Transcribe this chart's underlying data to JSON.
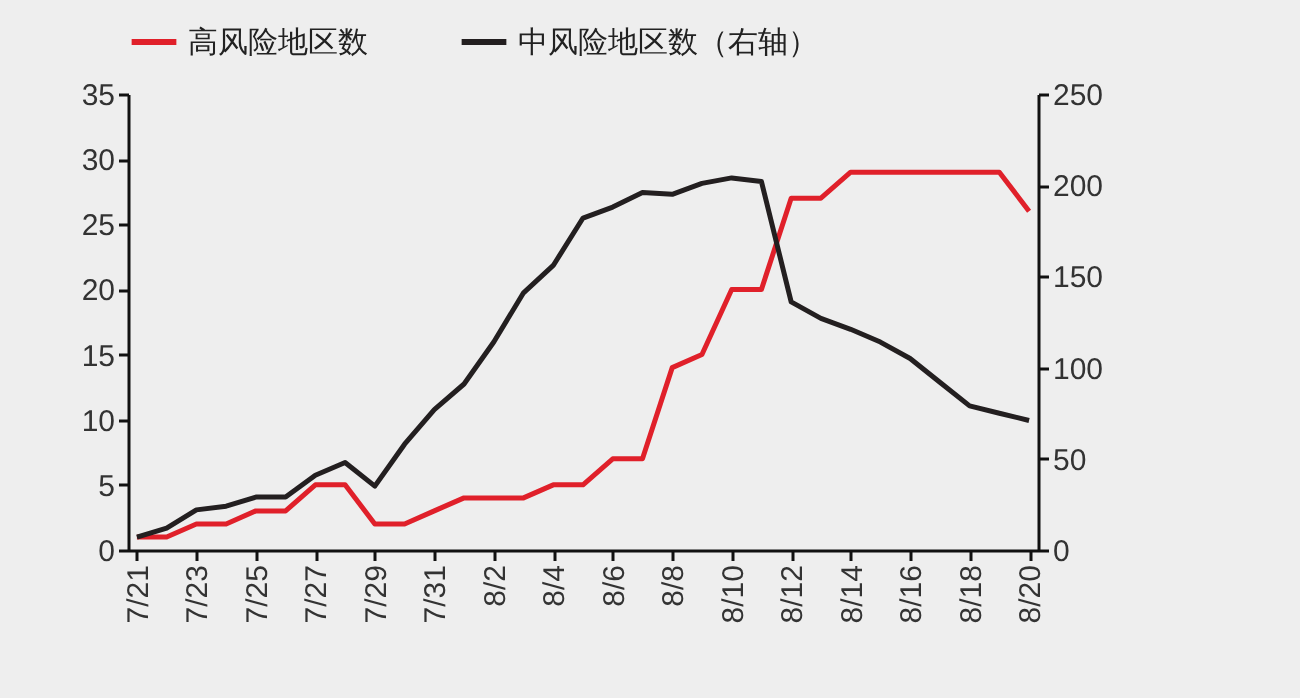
{
  "chart_data": {
    "type": "line",
    "categories": [
      "7/21",
      null,
      "7/23",
      null,
      "7/25",
      null,
      "7/27",
      null,
      "7/29",
      null,
      "7/31",
      null,
      "8/2",
      null,
      "8/4",
      null,
      "8/6",
      null,
      "8/8",
      null,
      "8/10",
      null,
      "8/12",
      null,
      "8/14",
      null,
      "8/16",
      null,
      "8/18",
      null,
      "8/20"
    ],
    "series": [
      {
        "name": "高风险地区数",
        "color": "#e0202a",
        "values": [
          1,
          1,
          2,
          2,
          3,
          3,
          5,
          5,
          2,
          2,
          3,
          4,
          4,
          4,
          5,
          5,
          7,
          7,
          14,
          15,
          20,
          20,
          27,
          27,
          29,
          29,
          29,
          29,
          29,
          29,
          26
        ]
      },
      {
        "name": "中风险地区数（右轴）",
        "color": "#231f20",
        "axis": "y2",
        "values": [
          7,
          12,
          22,
          24,
          29,
          29,
          41,
          48,
          35,
          58,
          77,
          91,
          114,
          141,
          156,
          182,
          188,
          196,
          195,
          201,
          204,
          202,
          136,
          127,
          121,
          114,
          105,
          92,
          79,
          75,
          71
        ]
      }
    ],
    "ylim": [
      0,
      35
    ],
    "yticks": [
      0,
      5,
      10,
      15,
      20,
      25,
      30,
      35
    ],
    "y2lim": [
      0,
      250
    ],
    "y2ticks": [
      0,
      50,
      100,
      150,
      200,
      250
    ],
    "grid": false,
    "legend": "top",
    "line_style": "solid",
    "marker": "none"
  }
}
